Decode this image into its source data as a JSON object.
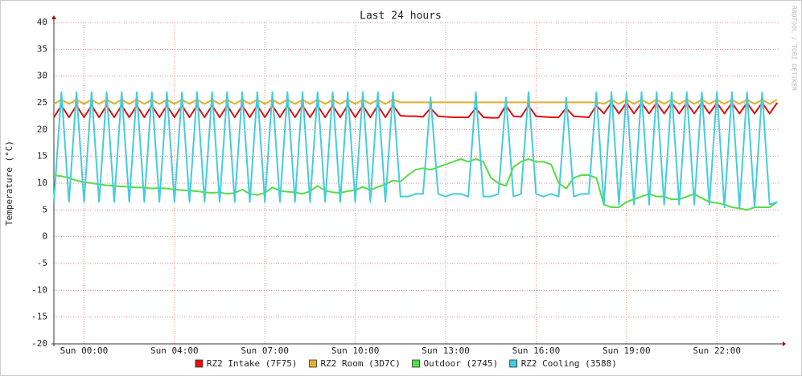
{
  "chart_data": {
    "type": "line",
    "title": "Last 24 hours",
    "y_label": "Temperature (°C)",
    "watermark": "RRDTOOL / TOBI OETIKER",
    "x": [
      0,
      0.25,
      0.5,
      0.75,
      1,
      1.25,
      1.5,
      1.75,
      2,
      2.25,
      2.5,
      2.75,
      3,
      3.25,
      3.5,
      3.75,
      4,
      4.25,
      4.5,
      4.75,
      5,
      5.25,
      5.5,
      5.75,
      6,
      6.25,
      6.5,
      6.75,
      7,
      7.25,
      7.5,
      7.75,
      8,
      8.25,
      8.5,
      8.75,
      9,
      9.25,
      9.5,
      9.75,
      10,
      10.25,
      10.5,
      10.75,
      11,
      11.25,
      11.5,
      11.75,
      12,
      12.25,
      12.5,
      12.75,
      13,
      13.25,
      13.5,
      13.75,
      14,
      14.25,
      14.5,
      14.75,
      15,
      15.25,
      15.5,
      15.75,
      16,
      16.25,
      16.5,
      16.75,
      17,
      17.25,
      17.5,
      17.75,
      18,
      18.25,
      18.5,
      18.75,
      19,
      19.25,
      19.5,
      19.75,
      20,
      20.25,
      20.5,
      20.75,
      21,
      21.25,
      21.5,
      21.75,
      22,
      22.25,
      22.5,
      22.75,
      23,
      23.25,
      23.5,
      23.75,
      24
    ],
    "xlim": [
      0,
      24.05
    ],
    "xticks": [
      {
        "value": 1,
        "label": "Sun 00:00"
      },
      {
        "value": 4,
        "label": "Sun 04:00"
      },
      {
        "value": 7,
        "label": "Sun 07:00"
      },
      {
        "value": 10,
        "label": "Sun 10:00"
      },
      {
        "value": 13,
        "label": "Sun 13:00"
      },
      {
        "value": 16,
        "label": "Sun 16:00"
      },
      {
        "value": 19,
        "label": "Sun 19:00"
      },
      {
        "value": 22,
        "label": "Sun 22:00"
      }
    ],
    "ylim": [
      -20,
      40
    ],
    "yticks": [
      -20,
      -15,
      -10,
      -5,
      0,
      5,
      10,
      15,
      20,
      25,
      30,
      35,
      40
    ],
    "grid": true,
    "legend": "bottom",
    "series": [
      {
        "name": "RZ2 Intake (7F75)",
        "color": "#e01010",
        "values": [
          22.3,
          24.5,
          22.3,
          24.5,
          22.3,
          24.5,
          22.3,
          24.5,
          22.3,
          24.5,
          22.3,
          24.5,
          22.3,
          24.5,
          22.3,
          24.5,
          22.3,
          24.5,
          22.3,
          24.5,
          22.3,
          24.5,
          22.3,
          24.5,
          22.3,
          24.5,
          22.3,
          24.5,
          22.3,
          24.5,
          22.3,
          24.5,
          22.3,
          24.5,
          22.3,
          24.5,
          22.3,
          24.5,
          22.3,
          24.5,
          22.3,
          24.5,
          22.3,
          24.5,
          22.3,
          24.5,
          22.6,
          22.5,
          22.5,
          22.4,
          24,
          22.5,
          22.4,
          22.3,
          22.3,
          22.3,
          24,
          22.3,
          22.2,
          22.2,
          24.5,
          22.5,
          22.4,
          24.5,
          22.5,
          22.4,
          22.3,
          22.3,
          24,
          22.5,
          22.4,
          22.3,
          24.5,
          23,
          25,
          23,
          25,
          23,
          25,
          23,
          25,
          23,
          25,
          23,
          25,
          23,
          25,
          23,
          25,
          23,
          25,
          23,
          25,
          23,
          25,
          23,
          25
        ]
      },
      {
        "name": "RZ2 Room (3D7C)",
        "color": "#e0b030",
        "values": [
          24.8,
          25.6,
          24.8,
          25.6,
          24.8,
          25.6,
          24.8,
          25.6,
          24.8,
          25.6,
          24.8,
          25.6,
          24.8,
          25.6,
          24.8,
          25.6,
          24.8,
          25.6,
          24.8,
          25.6,
          24.8,
          25.6,
          24.8,
          25.6,
          24.8,
          25.6,
          24.8,
          25.6,
          24.8,
          25.6,
          24.8,
          25.6,
          24.8,
          25.6,
          24.8,
          25.6,
          24.8,
          25.6,
          24.8,
          25.6,
          24.8,
          25.6,
          24.8,
          25.6,
          24.8,
          25.6,
          25.1,
          25.1,
          25.1,
          25.1,
          25.1,
          25.1,
          25.1,
          25.1,
          25.1,
          25.1,
          25.1,
          25.1,
          25.1,
          25.1,
          25.1,
          25.1,
          25.1,
          25.1,
          25.1,
          25.1,
          25.1,
          25.1,
          25.1,
          25.1,
          25.1,
          25.1,
          25.1,
          24.8,
          25.6,
          24.8,
          25.6,
          24.8,
          25.6,
          24.8,
          25.6,
          24.8,
          25.6,
          24.8,
          25.6,
          24.8,
          25.6,
          24.8,
          25.6,
          24.8,
          25.6,
          24.8,
          25.6,
          24.8,
          25.6,
          24.8,
          25.6
        ]
      },
      {
        "name": "Outdoor (2745)",
        "color": "#55dd44",
        "values": [
          11.5,
          11.3,
          11,
          10.5,
          10.2,
          10,
          9.8,
          9.6,
          9.5,
          9.4,
          9.3,
          9.2,
          9.2,
          9,
          9.1,
          9,
          8.8,
          8.7,
          8.6,
          8.5,
          8.3,
          8.2,
          8.3,
          8,
          8.2,
          8.8,
          8,
          7.8,
          8.2,
          9.2,
          8.6,
          8.4,
          8.3,
          8,
          8.5,
          9.5,
          8.6,
          8.3,
          8.2,
          8.5,
          8.7,
          9.3,
          8.7,
          9.3,
          9.8,
          10.5,
          10.3,
          11.5,
          12.5,
          12.8,
          12.5,
          13,
          13.5,
          14,
          14.5,
          14,
          14.5,
          14,
          11,
          10,
          9.5,
          13,
          14,
          14.5,
          14,
          14,
          13.5,
          10,
          9,
          11,
          11.5,
          11.5,
          11,
          6,
          5.5,
          5.5,
          6.5,
          7,
          7.5,
          8,
          7.5,
          7.5,
          7,
          7,
          7.5,
          8,
          7.2,
          6.5,
          6.3,
          6,
          5.5,
          5.3,
          5,
          5.5,
          5.5,
          5.5,
          6.5
        ]
      },
      {
        "name": "RZ2 Cooling (3588)",
        "color": "#44ccdd",
        "values": [
          6.5,
          27,
          6.5,
          27,
          6.5,
          27,
          6.5,
          27,
          6.5,
          27,
          6.5,
          27,
          6.5,
          27,
          6.5,
          27,
          6.5,
          27,
          6.5,
          27,
          6.5,
          27,
          6.5,
          27,
          6.5,
          27,
          6.5,
          27,
          6.5,
          27,
          6.5,
          27,
          6.5,
          27,
          6.5,
          27,
          6.5,
          27,
          6.5,
          27,
          6.5,
          27,
          6.5,
          27,
          6.5,
          27,
          7.5,
          7.5,
          8,
          8,
          26,
          8,
          7.5,
          8,
          8,
          7.5,
          27,
          7.5,
          7.5,
          8,
          26,
          7.5,
          8,
          27,
          8,
          7.5,
          8,
          7.5,
          26,
          7.5,
          8,
          8,
          27,
          6,
          27,
          6,
          27,
          6,
          27,
          6,
          27,
          6,
          27,
          6,
          27,
          6,
          27,
          6,
          27,
          5.5,
          27,
          5.5,
          27,
          5.5,
          27,
          6,
          6.5
        ]
      }
    ]
  }
}
